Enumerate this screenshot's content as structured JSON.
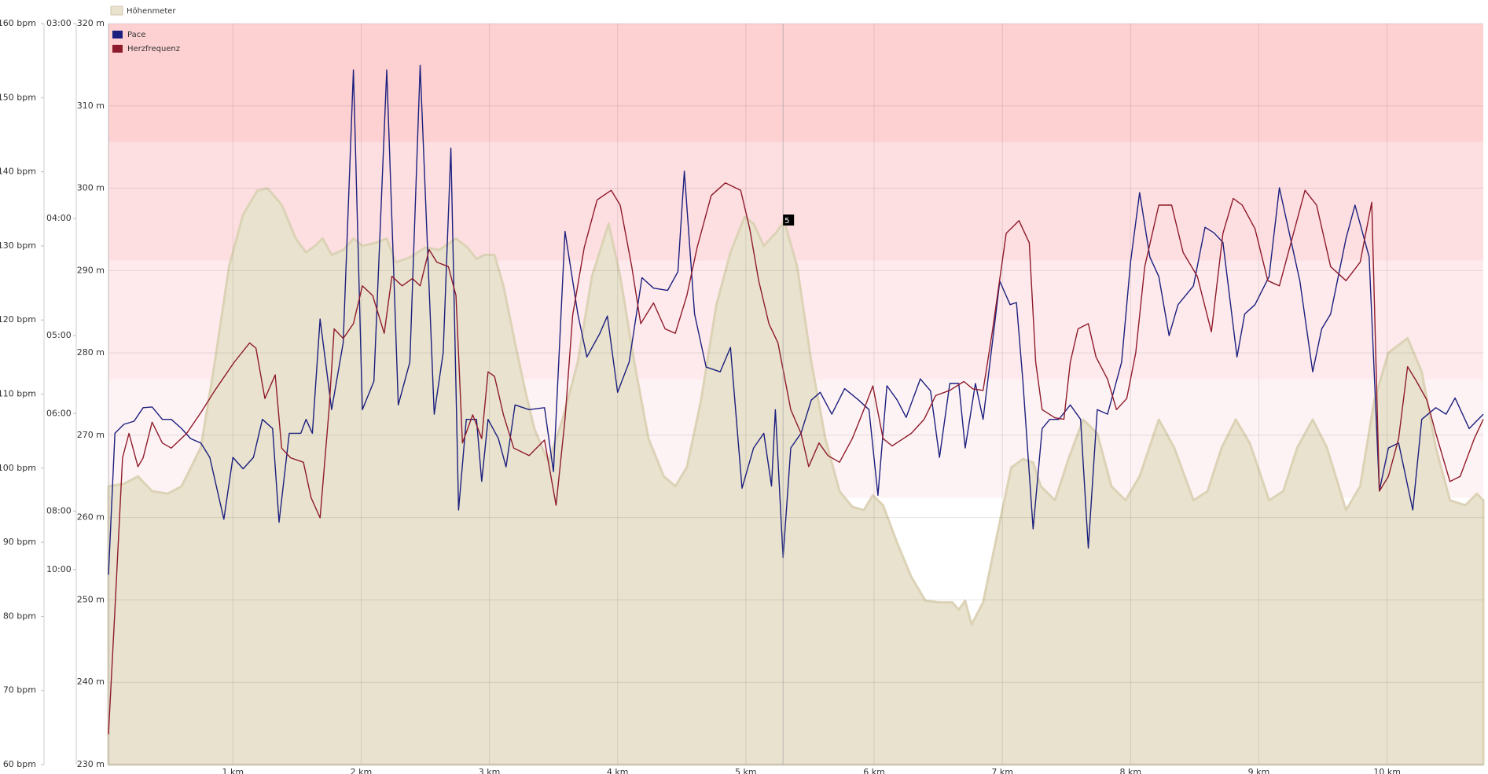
{
  "chart_data": {
    "type": "line",
    "grid": true,
    "xlim": [
      0.03,
      10.75
    ],
    "xticks": [
      {
        "value": 1,
        "label": "1 km"
      },
      {
        "value": 2,
        "label": "2 km"
      },
      {
        "value": 3,
        "label": "3 km"
      },
      {
        "value": 4,
        "label": "4 km"
      },
      {
        "value": 5,
        "label": "5 km"
      },
      {
        "value": 6,
        "label": "6 km"
      },
      {
        "value": 7,
        "label": "7 km"
      },
      {
        "value": 8,
        "label": "8 km"
      },
      {
        "value": 9,
        "label": "9 km"
      },
      {
        "value": 10,
        "label": "10 km"
      }
    ],
    "ylim": [
      230,
      320
    ],
    "yticks": [
      {
        "value": 230,
        "label": "230 m"
      },
      {
        "value": 240,
        "label": "240 m"
      },
      {
        "value": 250,
        "label": "250 m"
      },
      {
        "value": 260,
        "label": "260 m"
      },
      {
        "value": 270,
        "label": "270 m"
      },
      {
        "value": 280,
        "label": "280 m"
      },
      {
        "value": 290,
        "label": "290 m"
      },
      {
        "value": 300,
        "label": "300 m"
      },
      {
        "value": 310,
        "label": "310 m"
      },
      {
        "value": 320,
        "label": "320 m"
      }
    ],
    "y2lim": [
      60,
      160
    ],
    "y2ticks": [
      {
        "value": 60,
        "label": "60 bpm"
      },
      {
        "value": 70,
        "label": "70 bpm"
      },
      {
        "value": 80,
        "label": "80 bpm"
      },
      {
        "value": 90,
        "label": "90 bpm"
      },
      {
        "value": 100,
        "label": "100 bpm"
      },
      {
        "value": 110,
        "label": "110 bpm"
      },
      {
        "value": 120,
        "label": "120 bpm"
      },
      {
        "value": 130,
        "label": "130 bpm"
      },
      {
        "value": 140,
        "label": "140 bpm"
      },
      {
        "value": 150,
        "label": "150 bpm"
      },
      {
        "value": 160,
        "label": "160 bpm"
      }
    ],
    "y3lim": [
      60,
      3
    ],
    "y3scale": "reciprocal",
    "y3ticks": [
      {
        "value": 3,
        "label": "03:00"
      },
      {
        "value": 4,
        "label": "04:00"
      },
      {
        "value": 5,
        "label": "05:00"
      },
      {
        "value": 6,
        "label": "06:00"
      },
      {
        "value": 8,
        "label": "08:00"
      },
      {
        "value": 10,
        "label": "10:00"
      }
    ],
    "zones": [
      {
        "from": 96,
        "to": 112,
        "color": "#fef3f4",
        "axis": "y2"
      },
      {
        "from": 112,
        "to": 128,
        "color": "#feeaec",
        "axis": "y2"
      },
      {
        "from": 128,
        "to": 144,
        "color": "#fddfe2",
        "axis": "y2"
      },
      {
        "from": 144,
        "to": 160,
        "color": "#fdd1d2",
        "axis": "y2"
      }
    ],
    "cursor": {
      "x": 5.29,
      "label": "5"
    },
    "series": [
      {
        "name": "Höhenmeter",
        "kind": "area",
        "axis": "y",
        "color": "#e9e2cf",
        "legend": "top",
        "x": [
          0.03,
          0.15,
          0.26,
          0.37,
          0.49,
          0.6,
          0.75,
          0.86,
          0.97,
          1.08,
          1.19,
          1.27,
          1.38,
          1.49,
          1.57,
          1.64,
          1.7,
          1.77,
          1.86,
          1.94,
          2.01,
          2.12,
          2.2,
          2.27,
          2.38,
          2.5,
          2.61,
          2.74,
          2.83,
          2.9,
          2.96,
          3.04,
          3.11,
          3.2,
          3.28,
          3.35,
          3.46,
          3.57,
          3.69,
          3.8,
          3.93,
          4.02,
          4.13,
          4.24,
          4.36,
          4.45,
          4.54,
          4.65,
          4.77,
          4.88,
          4.99,
          5.06,
          5.14,
          5.23,
          5.3,
          5.4,
          5.51,
          5.62,
          5.73,
          5.83,
          5.92,
          5.99,
          6.07,
          6.18,
          6.29,
          6.4,
          6.51,
          6.61,
          6.66,
          6.71,
          6.76,
          6.85,
          6.96,
          7.07,
          7.16,
          7.24,
          7.3,
          7.41,
          7.52,
          7.63,
          7.74,
          7.85,
          7.96,
          8.07,
          8.22,
          8.34,
          8.49,
          8.6,
          8.71,
          8.82,
          8.93,
          9.08,
          9.19,
          9.3,
          9.42,
          9.53,
          9.68,
          9.79,
          9.9,
          10.01,
          10.16,
          10.27,
          10.38,
          10.49,
          10.61,
          10.7,
          10.75
        ],
        "values": [
          263.8,
          264.1,
          265.0,
          263.2,
          262.9,
          263.8,
          268.5,
          278.9,
          290.5,
          296.8,
          299.7,
          300.0,
          298.0,
          293.9,
          292.2,
          293.0,
          293.9,
          291.9,
          292.5,
          293.9,
          293.0,
          293.4,
          293.9,
          291.0,
          291.6,
          292.8,
          292.5,
          293.9,
          292.8,
          291.4,
          291.9,
          291.9,
          288.1,
          281.2,
          275.4,
          270.8,
          266.7,
          271.9,
          278.9,
          289.3,
          295.7,
          289.3,
          278.9,
          269.6,
          265.0,
          263.8,
          266.1,
          274.2,
          285.8,
          292.2,
          296.5,
          295.7,
          293.0,
          294.5,
          296.0,
          290.5,
          278.9,
          269.6,
          263.2,
          261.3,
          260.9,
          262.7,
          261.5,
          256.9,
          252.8,
          249.9,
          249.7,
          249.7,
          248.8,
          249.9,
          247.0,
          249.7,
          258.0,
          266.1,
          267.1,
          266.7,
          263.8,
          262.1,
          267.3,
          271.9,
          270.2,
          263.8,
          262.1,
          265.0,
          271.9,
          268.5,
          262.1,
          263.2,
          268.5,
          271.9,
          269.0,
          262.1,
          263.2,
          268.5,
          271.9,
          268.5,
          260.9,
          263.8,
          274.2,
          280.0,
          281.8,
          277.7,
          268.5,
          262.1,
          261.5,
          262.9,
          262.1
        ]
      },
      {
        "name": "Pace",
        "kind": "line",
        "axis": "y3",
        "color": "#1b1f7e",
        "legend": "top-left",
        "x": [
          0.03,
          0.08,
          0.15,
          0.23,
          0.3,
          0.37,
          0.45,
          0.52,
          0.6,
          0.67,
          0.75,
          0.82,
          0.93,
          1.0,
          1.08,
          1.16,
          1.23,
          1.31,
          1.36,
          1.44,
          1.53,
          1.57,
          1.62,
          1.68,
          1.77,
          1.86,
          1.94,
          2.01,
          2.1,
          2.2,
          2.29,
          2.38,
          2.46,
          2.57,
          2.64,
          2.7,
          2.76,
          2.82,
          2.9,
          2.94,
          2.99,
          3.07,
          3.13,
          3.2,
          3.31,
          3.43,
          3.5,
          3.59,
          3.69,
          3.76,
          3.86,
          3.92,
          4.0,
          4.09,
          4.19,
          4.28,
          4.39,
          4.47,
          4.52,
          4.6,
          4.69,
          4.8,
          4.88,
          4.97,
          5.06,
          5.14,
          5.2,
          5.23,
          5.29,
          5.35,
          5.43,
          5.51,
          5.58,
          5.67,
          5.77,
          5.88,
          5.96,
          6.03,
          6.1,
          6.18,
          6.25,
          6.36,
          6.44,
          6.51,
          6.59,
          6.66,
          6.71,
          6.79,
          6.85,
          6.98,
          7.06,
          7.11,
          7.16,
          7.24,
          7.31,
          7.37,
          7.44,
          7.53,
          7.61,
          7.67,
          7.74,
          7.82,
          7.93,
          8.0,
          8.07,
          8.15,
          8.22,
          8.3,
          8.37,
          8.49,
          8.58,
          8.65,
          8.72,
          8.83,
          8.89,
          8.97,
          9.08,
          9.16,
          9.23,
          9.32,
          9.42,
          9.49,
          9.56,
          9.68,
          9.75,
          9.86,
          9.94,
          10.01,
          10.09,
          10.2,
          10.27,
          10.38,
          10.46,
          10.53,
          10.64,
          10.75
        ],
        "values": [
          10.22,
          6.32,
          6.17,
          6.12,
          5.91,
          5.9,
          6.09,
          6.09,
          6.24,
          6.41,
          6.49,
          6.76,
          8.23,
          6.76,
          6.99,
          6.76,
          6.09,
          6.24,
          8.32,
          6.32,
          6.32,
          6.09,
          6.32,
          4.83,
          5.94,
          5.08,
          3.19,
          5.94,
          5.54,
          3.19,
          5.87,
          5.3,
          3.17,
          6.01,
          5.19,
          3.57,
          7.97,
          6.09,
          6.09,
          7.26,
          6.09,
          6.41,
          6.95,
          5.87,
          5.94,
          5.91,
          7.05,
          4.09,
          4.78,
          5.24,
          4.98,
          4.8,
          5.69,
          5.3,
          4.45,
          4.54,
          4.56,
          4.4,
          3.7,
          4.78,
          5.36,
          5.42,
          5.13,
          7.42,
          6.58,
          6.32,
          7.37,
          5.94,
          9.51,
          6.58,
          6.32,
          5.8,
          5.69,
          6.01,
          5.64,
          5.8,
          5.94,
          7.59,
          5.6,
          5.8,
          6.06,
          5.51,
          5.67,
          6.76,
          5.57,
          5.57,
          6.58,
          5.57,
          6.09,
          4.48,
          4.69,
          4.67,
          5.54,
          8.52,
          6.24,
          6.09,
          6.09,
          5.87,
          6.09,
          9.16,
          5.94,
          6.01,
          5.3,
          4.32,
          3.83,
          4.28,
          4.44,
          5.0,
          4.69,
          4.52,
          4.06,
          4.1,
          4.17,
          5.24,
          4.78,
          4.69,
          4.44,
          3.8,
          4.07,
          4.48,
          5.42,
          4.93,
          4.78,
          4.14,
          3.91,
          4.28,
          7.48,
          6.58,
          6.49,
          7.97,
          6.09,
          5.91,
          6.01,
          5.77,
          6.24,
          6.01
        ]
      },
      {
        "name": "Herzfrequenz",
        "kind": "line",
        "axis": "y2",
        "color": "#8e1b2b",
        "legend": "top-left",
        "x": [
          0.03,
          0.08,
          0.14,
          0.19,
          0.26,
          0.3,
          0.37,
          0.45,
          0.52,
          0.64,
          0.75,
          0.86,
          1.01,
          1.13,
          1.18,
          1.25,
          1.33,
          1.38,
          1.45,
          1.55,
          1.61,
          1.68,
          1.75,
          1.79,
          1.86,
          1.94,
          2.01,
          2.09,
          2.18,
          2.24,
          2.32,
          2.4,
          2.46,
          2.53,
          2.59,
          2.68,
          2.74,
          2.79,
          2.87,
          2.94,
          2.99,
          3.04,
          3.11,
          3.19,
          3.31,
          3.43,
          3.52,
          3.59,
          3.65,
          3.74,
          3.84,
          3.95,
          4.02,
          4.11,
          4.18,
          4.28,
          4.37,
          4.45,
          4.54,
          4.62,
          4.73,
          4.84,
          4.96,
          5.03,
          5.1,
          5.18,
          5.25,
          5.35,
          5.43,
          5.49,
          5.57,
          5.64,
          5.73,
          5.83,
          5.92,
          5.99,
          6.07,
          6.14,
          6.29,
          6.39,
          6.48,
          6.59,
          6.7,
          6.77,
          6.85,
          6.92,
          7.03,
          7.13,
          7.21,
          7.26,
          7.31,
          7.41,
          7.48,
          7.53,
          7.59,
          7.67,
          7.73,
          7.82,
          7.89,
          7.97,
          8.04,
          8.11,
          8.22,
          8.32,
          8.41,
          8.52,
          8.63,
          8.72,
          8.8,
          8.87,
          8.97,
          9.07,
          9.16,
          9.25,
          9.36,
          9.45,
          9.56,
          9.68,
          9.79,
          9.88,
          9.94,
          10.01,
          10.09,
          10.16,
          10.23,
          10.31,
          10.38,
          10.49,
          10.57,
          10.68,
          10.75
        ],
        "values": [
          64.1,
          80.9,
          101.4,
          104.7,
          100.2,
          101.4,
          106.2,
          103.4,
          102.7,
          104.7,
          107.5,
          110.5,
          114.3,
          116.9,
          116.2,
          109.4,
          112.6,
          102.7,
          101.4,
          100.8,
          96.0,
          93.3,
          107.9,
          118.8,
          117.5,
          119.5,
          124.6,
          123.3,
          118.2,
          125.9,
          124.6,
          125.6,
          124.6,
          129.5,
          127.8,
          127.2,
          123.3,
          103.4,
          107.2,
          104.0,
          113.0,
          112.4,
          107.2,
          102.7,
          101.7,
          103.8,
          95.0,
          106.6,
          120.7,
          129.8,
          136.2,
          137.5,
          135.5,
          127.2,
          119.5,
          122.3,
          118.8,
          118.2,
          123.3,
          129.8,
          136.8,
          138.5,
          137.5,
          132.3,
          125.3,
          119.5,
          116.9,
          107.9,
          104.7,
          100.2,
          103.4,
          101.7,
          100.8,
          104.0,
          107.9,
          111.1,
          104.0,
          103.0,
          104.7,
          106.6,
          109.8,
          110.5,
          111.7,
          110.7,
          110.5,
          118.2,
          131.7,
          133.4,
          130.4,
          114.3,
          107.9,
          106.8,
          106.6,
          114.3,
          118.8,
          119.5,
          115.0,
          112.0,
          107.9,
          109.4,
          115.6,
          127.2,
          135.5,
          135.5,
          129.1,
          125.9,
          118.4,
          131.7,
          136.4,
          135.5,
          132.3,
          125.3,
          124.6,
          130.4,
          137.5,
          135.5,
          127.2,
          125.3,
          127.8,
          135.9,
          96.9,
          98.9,
          104.0,
          113.7,
          111.7,
          109.2,
          104.7,
          98.2,
          98.9,
          104.0,
          106.6
        ]
      }
    ]
  }
}
